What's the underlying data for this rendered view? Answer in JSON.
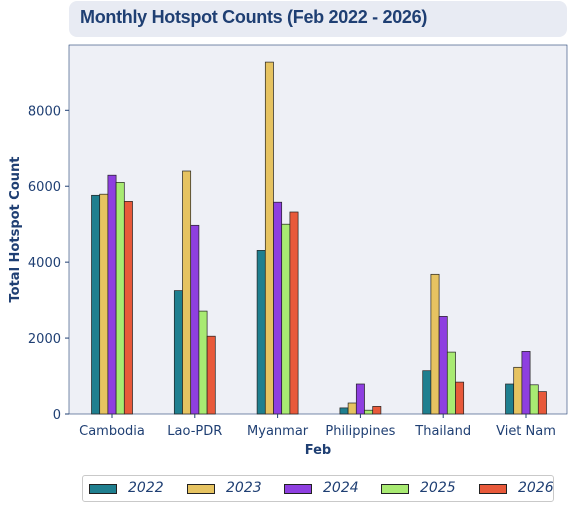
{
  "chart_data": {
    "type": "bar",
    "title": "Monthly Hotspot Counts (Feb 2022 - 2026)",
    "xlabel": "Feb",
    "ylabel": "Total Hotspot Count",
    "categories": [
      "Cambodia",
      "Lao-PDR",
      "Myanmar",
      "Philippines",
      "Thailand",
      "Viet Nam"
    ],
    "yticks": [
      0,
      2000,
      4000,
      6000,
      8000
    ],
    "ylim": [
      0,
      9720
    ],
    "grid": false,
    "legend_position": "bottom",
    "series": [
      {
        "name": "2022",
        "color": "#1f7f8f",
        "values": [
          5760,
          3250,
          4310,
          160,
          1140,
          790
        ]
      },
      {
        "name": "2023",
        "color": "#e6c361",
        "values": [
          5790,
          6400,
          9270,
          290,
          3680,
          1230
        ]
      },
      {
        "name": "2024",
        "color": "#8e3fe0",
        "values": [
          6290,
          4970,
          5580,
          790,
          2570,
          1650
        ]
      },
      {
        "name": "2025",
        "color": "#a8ea72",
        "values": [
          6100,
          2710,
          5000,
          100,
          1630,
          770
        ]
      },
      {
        "name": "2026",
        "color": "#e8593a",
        "values": [
          5600,
          2050,
          5320,
          200,
          840,
          590
        ]
      }
    ],
    "plot_background": "#eef0f6"
  }
}
